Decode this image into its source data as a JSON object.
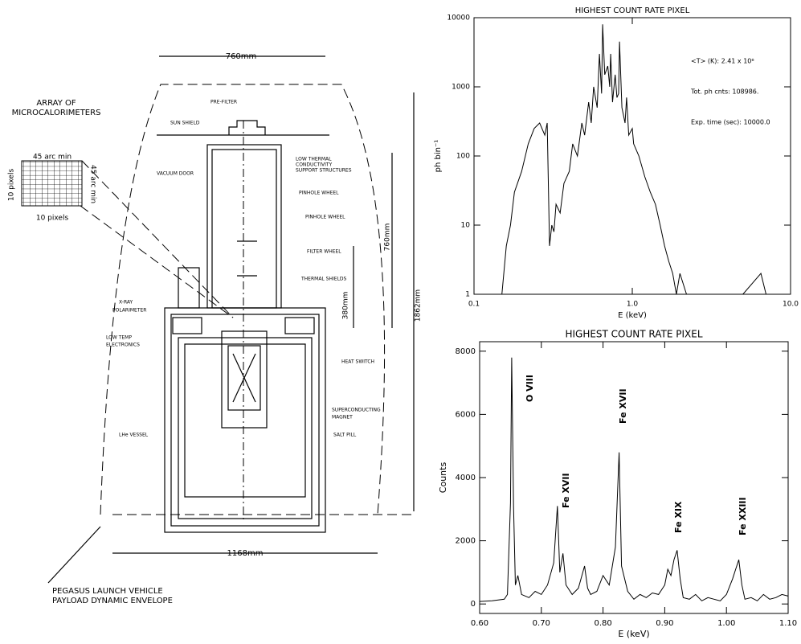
{
  "diagram": {
    "labels": [
      "760mm",
      "PRE-FILTER",
      "ARRAY OF",
      "MICROCALORIMETERS",
      "45 arc min",
      "45 arc min",
      "10 pixels",
      "10 pixels",
      "SUN SHIELD",
      "VACUUM DOOR",
      "LOW THERMAL",
      "CONDUCTIVITY",
      "SUPPORT STRUCTURES",
      "PINHOLE WHEEL",
      "PINHOLE WHEEL",
      "FILTER WHEEL",
      "THERMAL SHIELDS",
      "760mm",
      "380mm",
      "1862mm",
      "X-RAY",
      "POLARIMETER",
      "LOW TEMP",
      "ELECTRONICS",
      "HEAT SWITCH",
      "SUPERCONDUCTING",
      "MAGNET",
      "SALT PILL",
      "LHe VESSEL",
      "1168mm",
      "PEGASUS LAUNCH VEHICLE",
      "PAYLOAD DYNAMIC ENVELOPE"
    ]
  },
  "chart_data": [
    {
      "type": "line",
      "title": "HIGHEST COUNT RATE PIXEL",
      "xlabel": "E (keV)",
      "ylabel": "ph bin⁻¹",
      "xscale": "log",
      "yscale": "log",
      "color": "#000000",
      "annotations": [
        "<T> (K): 2.41 x 10⁶",
        "Tot. ph cnts: 108986.",
        "Exp. time (sec): 10000.0"
      ],
      "xlim": [
        0.1,
        10
      ],
      "ylim": [
        1,
        10000
      ],
      "xticks": [
        0.1,
        {
          "value": 1,
          "label": "1.0"
        },
        {
          "value": 10,
          "label": "10.0"
        }
      ],
      "yticks": [
        1,
        10,
        100,
        1000,
        10000
      ],
      "x": [
        0.15,
        0.16,
        0.17,
        0.18,
        0.2,
        0.22,
        0.24,
        0.26,
        0.28,
        0.29,
        0.3,
        0.31,
        0.32,
        0.33,
        0.35,
        0.37,
        0.4,
        0.42,
        0.45,
        0.48,
        0.5,
        0.53,
        0.55,
        0.57,
        0.6,
        0.62,
        0.64,
        0.65,
        0.67,
        0.7,
        0.72,
        0.73,
        0.75,
        0.78,
        0.8,
        0.82,
        0.83,
        0.86,
        0.9,
        0.92,
        0.95,
        1.0,
        1.02,
        1.1,
        1.2,
        1.3,
        1.4,
        1.5,
        1.6,
        1.7,
        1.8,
        1.9,
        2.0,
        2.2,
        2.5,
        3.0,
        5.0,
        6.5,
        7.0
      ],
      "values": [
        1,
        5,
        10,
        30,
        60,
        150,
        250,
        300,
        200,
        300,
        5,
        10,
        8,
        20,
        15,
        40,
        60,
        150,
        100,
        300,
        200,
        600,
        300,
        1000,
        500,
        3000,
        800,
        8000,
        1500,
        2000,
        1000,
        3000,
        600,
        1500,
        700,
        800,
        4500,
        500,
        300,
        700,
        200,
        250,
        150,
        100,
        50,
        30,
        20,
        10,
        5,
        3,
        2,
        1,
        2,
        1,
        1,
        1,
        1,
        2,
        1
      ]
    },
    {
      "type": "line",
      "title": "HIGHEST COUNT RATE PIXEL",
      "xlabel": "E (keV)",
      "ylabel": "Counts",
      "color": "#000000",
      "line_labels": [
        "O VIII",
        "Fe XVII",
        "Fe XVII",
        "Fe XIX",
        "Fe XXIII"
      ],
      "xlim": [
        0.6,
        1.1
      ],
      "ylim": [
        -300,
        8300
      ],
      "xticks": [
        {
          "value": 0.6,
          "label": "0.60"
        },
        {
          "value": 0.7,
          "label": "0.70"
        },
        {
          "value": 0.8,
          "label": "0.80"
        },
        {
          "value": 0.9,
          "label": "0.90"
        },
        {
          "value": 1.0,
          "label": "1.00"
        },
        {
          "value": 1.1,
          "label": "1.10"
        }
      ],
      "yticks": [
        0,
        2000,
        4000,
        6000,
        8000
      ],
      "x": [
        0.6,
        0.62,
        0.64,
        0.645,
        0.65,
        0.652,
        0.655,
        0.658,
        0.662,
        0.668,
        0.68,
        0.69,
        0.7,
        0.71,
        0.72,
        0.726,
        0.73,
        0.735,
        0.74,
        0.75,
        0.76,
        0.77,
        0.775,
        0.78,
        0.79,
        0.8,
        0.81,
        0.82,
        0.826,
        0.83,
        0.84,
        0.85,
        0.86,
        0.87,
        0.88,
        0.89,
        0.9,
        0.905,
        0.91,
        0.915,
        0.92,
        0.925,
        0.93,
        0.94,
        0.95,
        0.96,
        0.97,
        0.98,
        0.99,
        1.0,
        1.01,
        1.015,
        1.02,
        1.025,
        1.03,
        1.04,
        1.05,
        1.06,
        1.07,
        1.08,
        1.09,
        1.1
      ],
      "values": [
        80,
        100,
        150,
        300,
        3200,
        7800,
        3100,
        600,
        900,
        300,
        200,
        400,
        300,
        600,
        1300,
        3100,
        1000,
        1600,
        600,
        300,
        500,
        1200,
        500,
        300,
        400,
        900,
        600,
        1800,
        4800,
        1200,
        400,
        150,
        300,
        200,
        350,
        300,
        600,
        1100,
        900,
        1400,
        1700,
        800,
        200,
        150,
        300,
        100,
        200,
        150,
        100,
        300,
        800,
        1100,
        1400,
        600,
        150,
        200,
        100,
        300,
        150,
        200,
        300,
        250
      ]
    }
  ]
}
